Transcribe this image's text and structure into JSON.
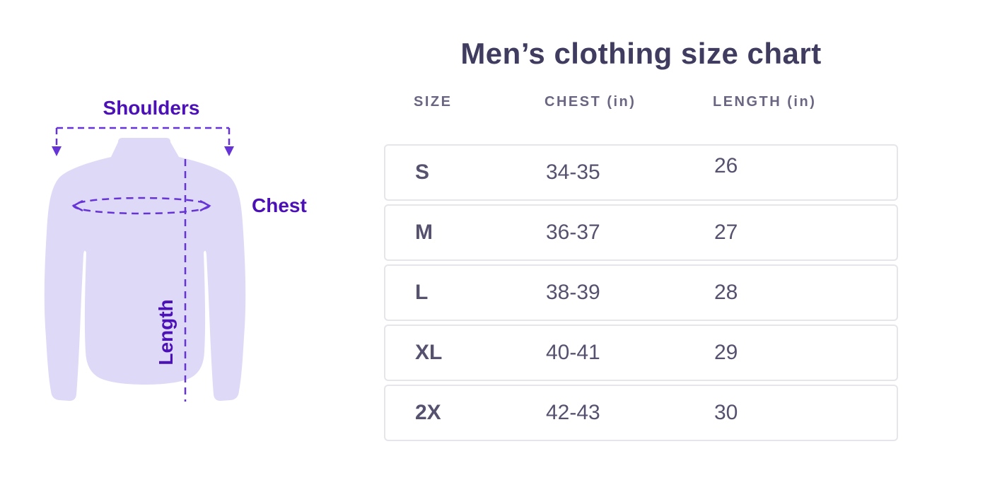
{
  "title": "Men’s clothing size chart",
  "diagram": {
    "labels": {
      "shoulders": "Shoulders",
      "chest": "Chest",
      "length": "Length"
    }
  },
  "table": {
    "headers": [
      "SIZE",
      "CHEST (in)",
      "LENGTH (in)"
    ],
    "rows": [
      {
        "size": "S",
        "chest": "34-35",
        "length": "26"
      },
      {
        "size": "M",
        "chest": "36-37",
        "length": "27"
      },
      {
        "size": "L",
        "chest": "38-39",
        "length": "28"
      },
      {
        "size": "XL",
        "chest": "40-41",
        "length": "29"
      },
      {
        "size": "2X",
        "chest": "42-43",
        "length": "30"
      }
    ]
  },
  "colors": {
    "accent_purple": "#4b10b6",
    "dash_purple": "#6633d6",
    "shirt_fill": "#ded9f7",
    "title_text": "#3f3c60",
    "header_text": "#6a6580",
    "cell_text": "#56516e",
    "row_border": "#e6e5e9"
  },
  "chart_data": {
    "type": "table",
    "title": "Men’s clothing size chart",
    "columns": [
      "SIZE",
      "CHEST (in)",
      "LENGTH (in)"
    ],
    "rows": [
      [
        "S",
        "34-35",
        "26"
      ],
      [
        "M",
        "36-37",
        "27"
      ],
      [
        "L",
        "38-39",
        "28"
      ],
      [
        "XL",
        "40-41",
        "29"
      ],
      [
        "2X",
        "42-43",
        "30"
      ]
    ],
    "units": "inches",
    "legend_position": "none",
    "grid": false
  }
}
